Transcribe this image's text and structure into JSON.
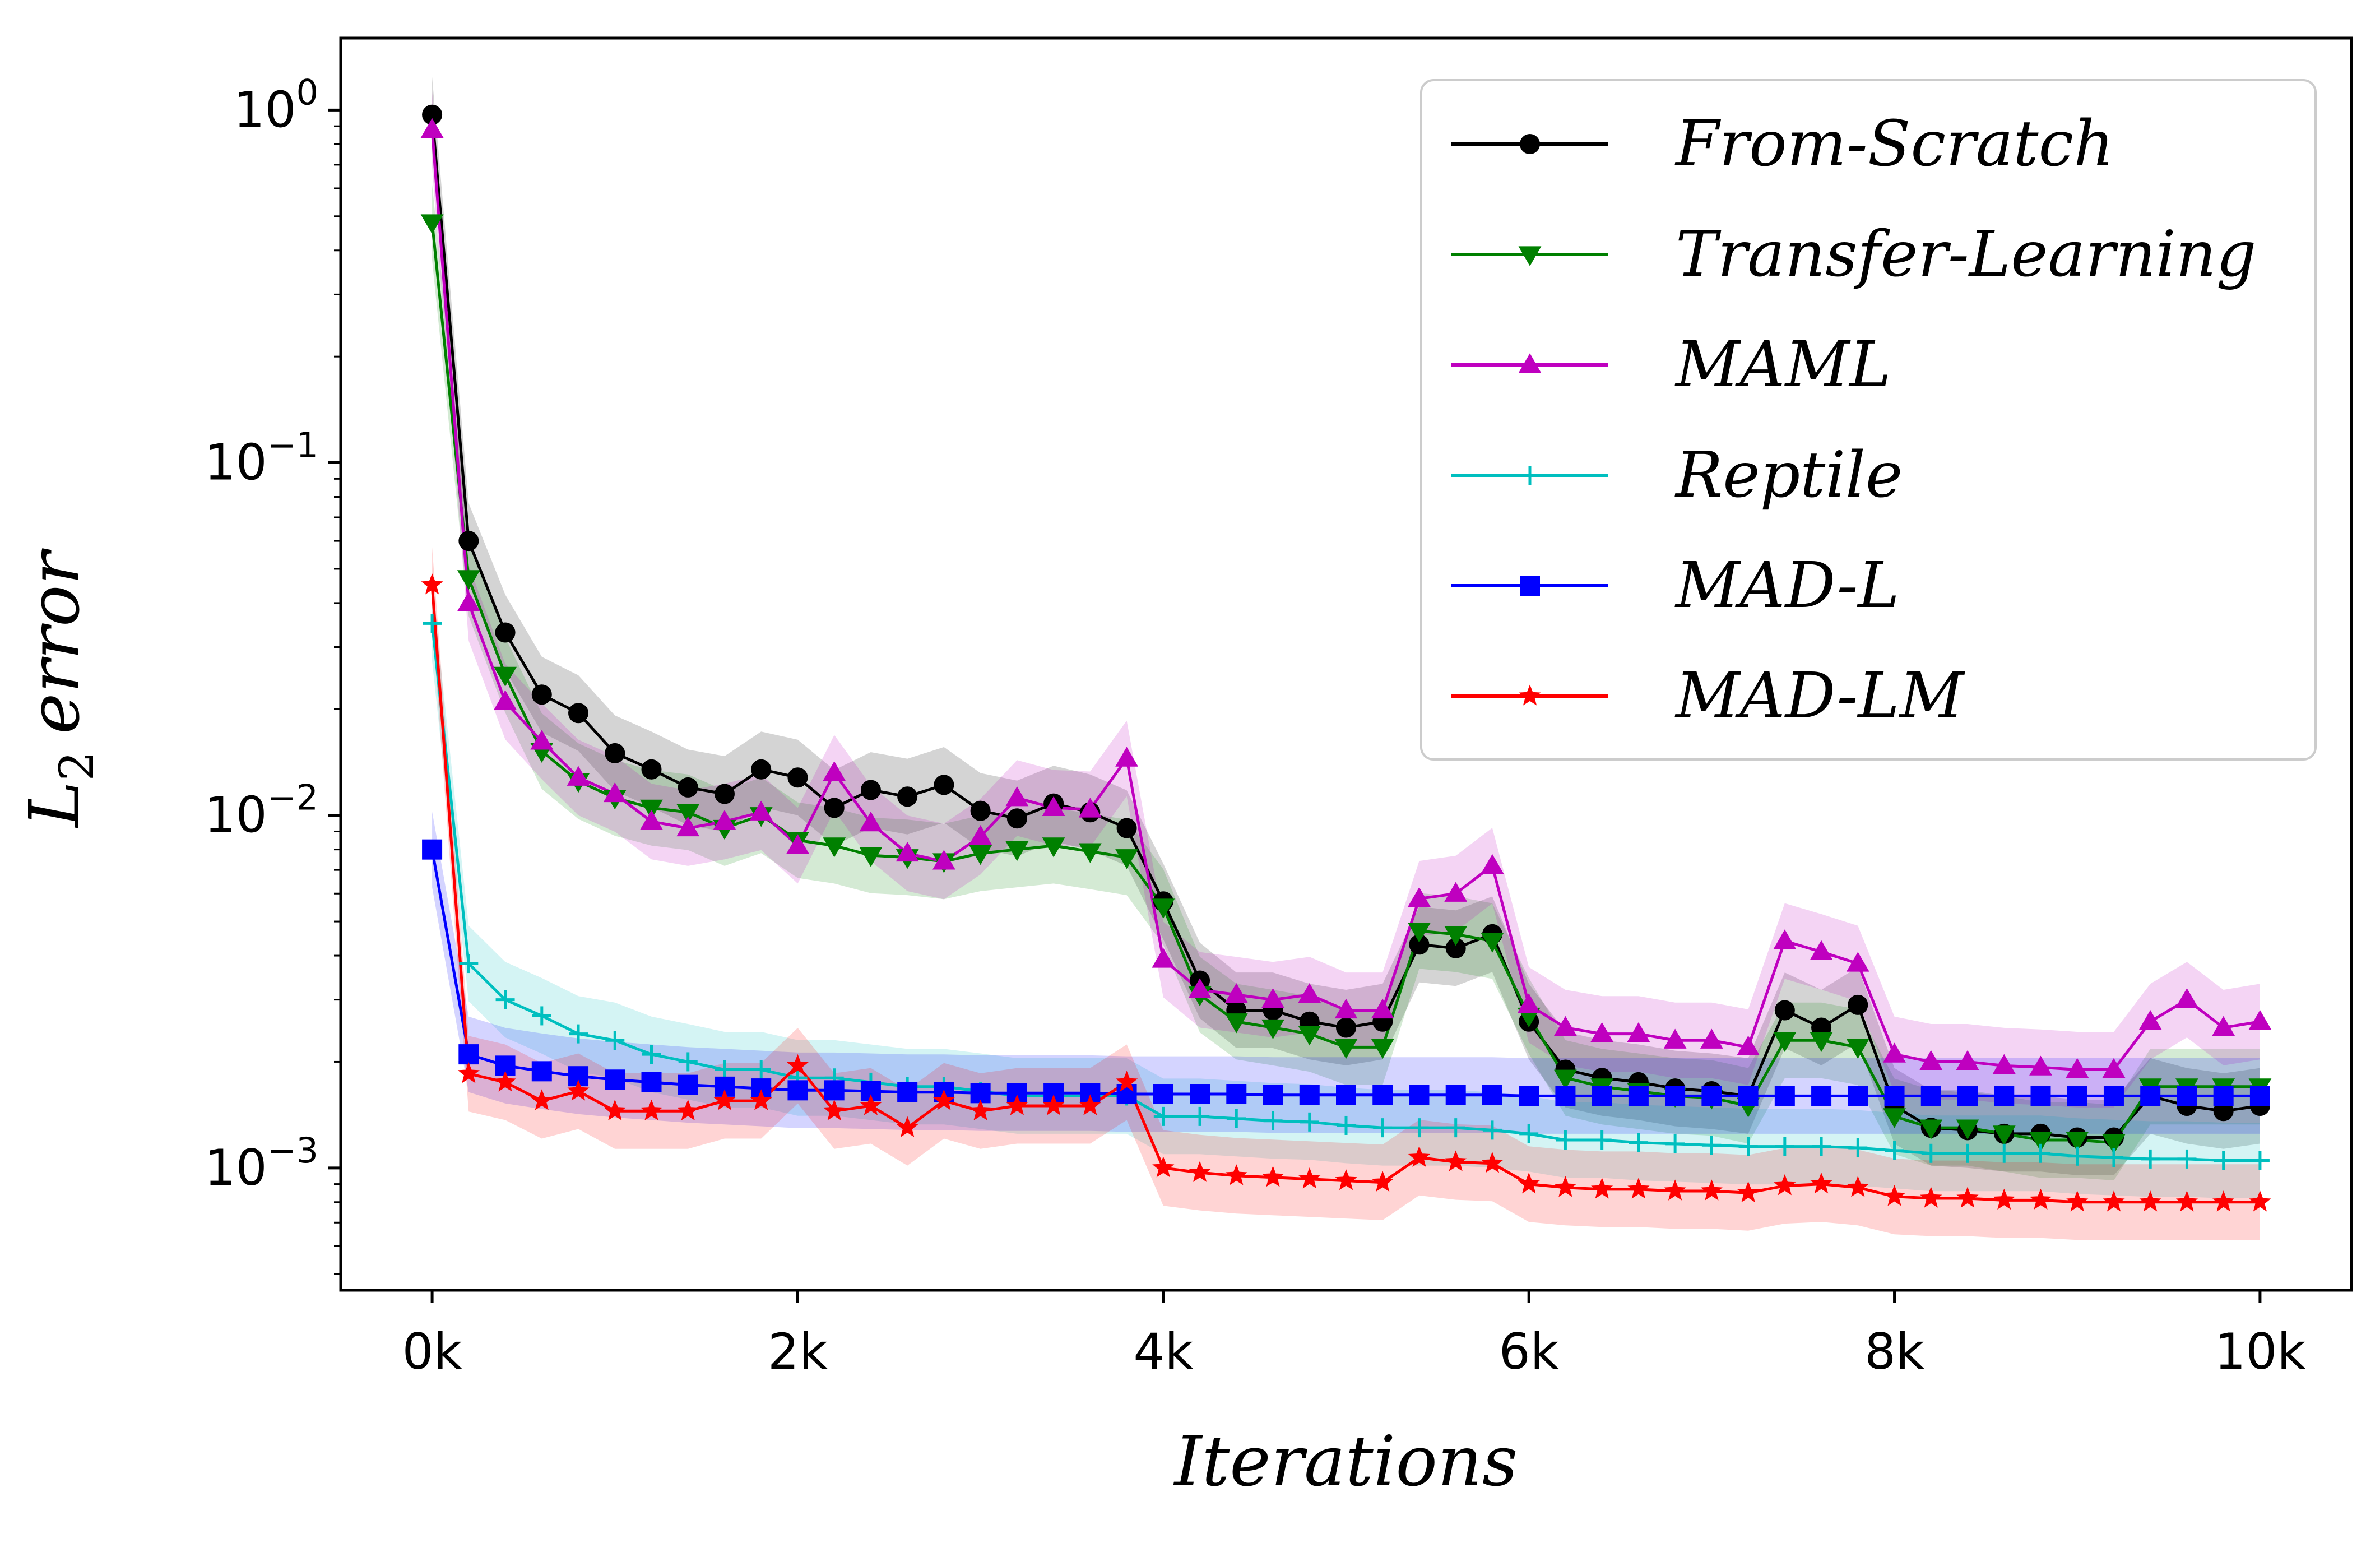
{
  "chart_data": {
    "type": "line",
    "title": "",
    "xlabel": "Iterations",
    "ylabel": "L",
    "ylabel_subscript": "2",
    "ylabel_suffix": "error",
    "yscale": "log",
    "xlim": [
      -500,
      10500
    ],
    "ylim": [
      0.00045,
      1.6
    ],
    "grid": false,
    "legend_position": "top-right",
    "x_ticks": [
      0,
      2000,
      4000,
      6000,
      8000,
      10000
    ],
    "x_tick_labels": [
      "0k",
      "2k",
      "4k",
      "6k",
      "8k",
      "10k"
    ],
    "y_ticks": [
      {
        "value": 1,
        "base": "10",
        "exp": "0"
      },
      {
        "value": 0.1,
        "base": "10",
        "exp": "−1"
      },
      {
        "value": 0.01,
        "base": "10",
        "exp": "−2"
      },
      {
        "value": 0.001,
        "base": "10",
        "exp": "−3"
      }
    ],
    "x": [
      0,
      200,
      400,
      600,
      800,
      1000,
      1200,
      1400,
      1600,
      1800,
      2000,
      2200,
      2400,
      2600,
      2800,
      3000,
      3200,
      3400,
      3600,
      3800,
      4000,
      4200,
      4400,
      4600,
      4800,
      5000,
      5200,
      5400,
      5600,
      5800,
      6000,
      6200,
      6400,
      6600,
      6800,
      7000,
      7200,
      7400,
      7600,
      7800,
      8000,
      8200,
      8400,
      8600,
      8800,
      9000,
      9200,
      9400,
      9600,
      9800,
      10000
    ],
    "series": [
      {
        "name": "From-Scratch",
        "color": "#000000",
        "marker": "circle",
        "values": [
          0.97,
          0.06,
          0.033,
          0.022,
          0.0195,
          0.015,
          0.0135,
          0.012,
          0.0115,
          0.0135,
          0.0128,
          0.0105,
          0.0118,
          0.0113,
          0.0122,
          0.0103,
          0.0098,
          0.0108,
          0.0102,
          0.0092,
          0.0057,
          0.0034,
          0.0028,
          0.0028,
          0.0026,
          0.0025,
          0.0026,
          0.0043,
          0.0042,
          0.0046,
          0.0026,
          0.0019,
          0.0018,
          0.00175,
          0.00168,
          0.00165,
          0.0016,
          0.0028,
          0.0025,
          0.0029,
          0.0015,
          0.0013,
          0.00128,
          0.00125,
          0.00125,
          0.00122,
          0.00122,
          0.0016,
          0.0015,
          0.00145,
          0.0015
        ]
      },
      {
        "name": "Transfer-Learning",
        "color": "#008000",
        "marker": "triangle-down",
        "values": [
          0.48,
          0.047,
          0.025,
          0.0152,
          0.0125,
          0.0112,
          0.0105,
          0.0102,
          0.0092,
          0.01,
          0.0085,
          0.0082,
          0.0077,
          0.0076,
          0.0074,
          0.0078,
          0.008,
          0.0082,
          0.0079,
          0.0076,
          0.0055,
          0.0031,
          0.0026,
          0.0025,
          0.0024,
          0.0022,
          0.0022,
          0.0047,
          0.0046,
          0.0044,
          0.0027,
          0.0018,
          0.0017,
          0.00165,
          0.0016,
          0.00158,
          0.0015,
          0.0023,
          0.0023,
          0.0022,
          0.0014,
          0.0013,
          0.0013,
          0.00125,
          0.0012,
          0.0012,
          0.00118,
          0.0017,
          0.0017,
          0.0017,
          0.0017
        ]
      },
      {
        "name": "MAML",
        "color": "#bf00bf",
        "marker": "triangle-up",
        "values": [
          0.88,
          0.04,
          0.021,
          0.0162,
          0.0128,
          0.0115,
          0.0096,
          0.0092,
          0.0096,
          0.0102,
          0.0082,
          0.0132,
          0.0095,
          0.0078,
          0.0074,
          0.0087,
          0.0112,
          0.0105,
          0.0104,
          0.0145,
          0.0039,
          0.0032,
          0.0031,
          0.003,
          0.0031,
          0.0028,
          0.0028,
          0.0058,
          0.006,
          0.0072,
          0.0029,
          0.0025,
          0.0024,
          0.0024,
          0.0023,
          0.0023,
          0.0022,
          0.0044,
          0.0041,
          0.0038,
          0.0021,
          0.002,
          0.002,
          0.00195,
          0.00193,
          0.0019,
          0.0019,
          0.0026,
          0.003,
          0.0025,
          0.0026
        ]
      },
      {
        "name": "Reptile",
        "color": "#00bfbf",
        "marker": "plus",
        "values": [
          0.035,
          0.0038,
          0.003,
          0.0027,
          0.0024,
          0.0023,
          0.0021,
          0.002,
          0.0019,
          0.0019,
          0.0018,
          0.0018,
          0.00175,
          0.0017,
          0.0017,
          0.00165,
          0.0016,
          0.0016,
          0.0016,
          0.0016,
          0.0014,
          0.0014,
          0.00138,
          0.00136,
          0.00135,
          0.00132,
          0.0013,
          0.0013,
          0.0013,
          0.00128,
          0.00125,
          0.0012,
          0.0012,
          0.00118,
          0.00117,
          0.00116,
          0.00115,
          0.00115,
          0.00115,
          0.00114,
          0.00112,
          0.0011,
          0.0011,
          0.0011,
          0.0011,
          0.00108,
          0.00107,
          0.00106,
          0.00106,
          0.00105,
          0.00105
        ]
      },
      {
        "name": "MAD-L",
        "color": "#0000ff",
        "marker": "square",
        "values": [
          0.008,
          0.0021,
          0.00195,
          0.00188,
          0.00182,
          0.00178,
          0.00175,
          0.00172,
          0.0017,
          0.00168,
          0.00166,
          0.00166,
          0.00165,
          0.00164,
          0.00164,
          0.00163,
          0.00163,
          0.00163,
          0.00163,
          0.00162,
          0.00162,
          0.00162,
          0.00162,
          0.00161,
          0.00161,
          0.00161,
          0.00161,
          0.00161,
          0.00161,
          0.00161,
          0.0016,
          0.0016,
          0.0016,
          0.0016,
          0.0016,
          0.0016,
          0.0016,
          0.0016,
          0.0016,
          0.0016,
          0.0016,
          0.0016,
          0.0016,
          0.0016,
          0.0016,
          0.0016,
          0.0016,
          0.0016,
          0.0016,
          0.0016,
          0.0016
        ]
      },
      {
        "name": "MAD-LM",
        "color": "#ff0000",
        "marker": "star",
        "values": [
          0.045,
          0.00185,
          0.00175,
          0.00155,
          0.00165,
          0.00145,
          0.00145,
          0.00145,
          0.00155,
          0.00155,
          0.00195,
          0.00145,
          0.0015,
          0.0013,
          0.00155,
          0.00145,
          0.0015,
          0.0015,
          0.0015,
          0.00175,
          0.001,
          0.00097,
          0.00095,
          0.00094,
          0.00093,
          0.00092,
          0.00091,
          0.00107,
          0.00104,
          0.00103,
          0.0009,
          0.00088,
          0.00087,
          0.00087,
          0.00086,
          0.00086,
          0.00085,
          0.00089,
          0.0009,
          0.00088,
          0.00083,
          0.00082,
          0.00082,
          0.00081,
          0.00081,
          0.0008,
          0.0008,
          0.0008,
          0.0008,
          0.0008,
          0.0008
        ]
      }
    ]
  }
}
